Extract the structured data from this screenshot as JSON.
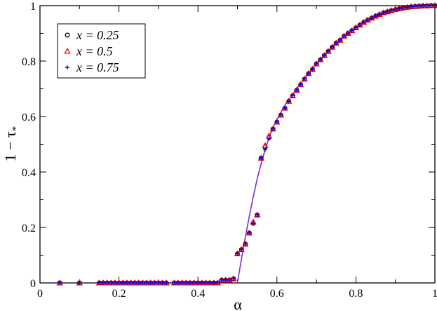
{
  "chart_data": {
    "type": "scatter",
    "xlabel": "α",
    "ylabel": "1 − τ",
    "ylabel_subscript": "*",
    "xlim": [
      0,
      1
    ],
    "ylim": [
      0,
      1
    ],
    "xticks": [
      "0",
      "0.2",
      "0.4",
      "0.6",
      "0.8",
      "1"
    ],
    "xtick_values": [
      0,
      0.2,
      0.4,
      0.6,
      0.8,
      1
    ],
    "yticks": [
      "0",
      "0.2",
      "0.4",
      "0.6",
      "0.8",
      "1"
    ],
    "ytick_values": [
      0,
      0.2,
      0.4,
      0.6,
      0.8,
      1
    ],
    "grid": false,
    "legend_position": "top-left",
    "x": [
      0.05,
      0.1,
      0.15,
      0.16,
      0.17,
      0.18,
      0.19,
      0.2,
      0.21,
      0.22,
      0.23,
      0.24,
      0.25,
      0.26,
      0.27,
      0.28,
      0.29,
      0.3,
      0.31,
      0.32,
      0.34,
      0.35,
      0.36,
      0.37,
      0.38,
      0.39,
      0.4,
      0.41,
      0.42,
      0.43,
      0.44,
      0.45,
      0.46,
      0.47,
      0.48,
      0.49,
      0.5,
      0.51,
      0.52,
      0.53,
      0.54,
      0.55,
      0.56,
      0.57,
      0.58,
      0.59,
      0.6,
      0.61,
      0.62,
      0.63,
      0.64,
      0.65,
      0.66,
      0.67,
      0.68,
      0.69,
      0.7,
      0.71,
      0.72,
      0.73,
      0.74,
      0.75,
      0.76,
      0.77,
      0.78,
      0.79,
      0.8,
      0.81,
      0.82,
      0.83,
      0.84,
      0.85,
      0.86,
      0.87,
      0.88,
      0.89,
      0.9,
      0.91,
      0.92,
      0.93,
      0.94,
      0.95,
      0.96,
      0.97,
      0.98,
      0.99,
      1.0
    ],
    "series": [
      {
        "name": "x = 0.25",
        "marker": "circle",
        "color": "#000000",
        "values": [
          0.0,
          0.0,
          0.0,
          0.0,
          0.0,
          0.0,
          0.0,
          0.0,
          0.0,
          0.0,
          0.0,
          0.0,
          0.0,
          0.0,
          0.0,
          0.0,
          0.0,
          0.0,
          0.0,
          0.0,
          0.0,
          0.0,
          0.0,
          0.0,
          0.0,
          0.0,
          0.0,
          0.0,
          0.0,
          0.0,
          0.0,
          0.0,
          0.01,
          0.01,
          0.01,
          0.015,
          0.105,
          0.12,
          0.14,
          0.18,
          0.215,
          0.245,
          0.45,
          0.49,
          0.525,
          0.555,
          0.58,
          0.605,
          0.63,
          0.655,
          0.675,
          0.695,
          0.715,
          0.735,
          0.755,
          0.77,
          0.79,
          0.805,
          0.82,
          0.835,
          0.85,
          0.865,
          0.875,
          0.89,
          0.9,
          0.91,
          0.92,
          0.93,
          0.94,
          0.948,
          0.955,
          0.962,
          0.968,
          0.974,
          0.978,
          0.982,
          0.986,
          0.989,
          0.992,
          0.994,
          0.996,
          0.997,
          0.998,
          0.999,
          0.999,
          1.0,
          1.0
        ]
      },
      {
        "name": "x = 0.5",
        "marker": "triangle",
        "color": "#ff0000",
        "values": [
          0.0,
          0.0,
          0.0,
          0.0,
          0.0,
          0.0,
          0.0,
          0.0,
          0.0,
          0.0,
          0.0,
          0.0,
          0.0,
          0.0,
          0.0,
          0.0,
          0.0,
          0.0,
          0.0,
          0.0,
          0.0,
          0.0,
          0.0,
          0.0,
          0.0,
          0.0,
          0.0,
          0.0,
          0.0,
          0.0,
          0.0,
          0.0,
          0.01,
          0.01,
          0.01,
          0.015,
          0.105,
          0.12,
          0.14,
          0.18,
          0.22,
          0.245,
          0.45,
          0.495,
          0.53,
          0.555,
          0.58,
          0.605,
          0.63,
          0.655,
          0.675,
          0.695,
          0.715,
          0.735,
          0.755,
          0.77,
          0.79,
          0.805,
          0.82,
          0.835,
          0.85,
          0.865,
          0.875,
          0.89,
          0.9,
          0.91,
          0.92,
          0.93,
          0.94,
          0.948,
          0.955,
          0.962,
          0.968,
          0.974,
          0.978,
          0.982,
          0.986,
          0.989,
          0.992,
          0.994,
          0.996,
          0.997,
          0.998,
          0.999,
          0.999,
          1.0,
          1.0
        ]
      },
      {
        "name": "x = 0.75",
        "marker": "plus",
        "color": "#0000ff",
        "values": [
          0.0,
          0.0,
          0.0,
          0.0,
          0.0,
          0.0,
          0.0,
          0.0,
          0.0,
          0.0,
          0.0,
          0.0,
          0.0,
          0.0,
          0.0,
          0.0,
          0.0,
          0.0,
          0.0,
          0.0,
          0.0,
          0.0,
          0.0,
          0.0,
          0.0,
          0.0,
          0.0,
          0.0,
          0.0,
          0.0,
          0.0,
          0.0,
          0.01,
          0.01,
          0.01,
          0.015,
          0.105,
          0.12,
          0.14,
          0.18,
          0.215,
          0.245,
          0.45,
          0.48,
          0.52,
          0.555,
          0.58,
          0.605,
          0.63,
          0.655,
          0.675,
          0.695,
          0.715,
          0.735,
          0.755,
          0.77,
          0.79,
          0.805,
          0.82,
          0.835,
          0.85,
          0.865,
          0.875,
          0.89,
          0.9,
          0.91,
          0.92,
          0.93,
          0.94,
          0.948,
          0.955,
          0.962,
          0.968,
          0.974,
          0.978,
          0.982,
          0.986,
          0.989,
          0.992,
          0.994,
          0.996,
          0.997,
          0.998,
          0.999,
          0.999,
          1.0,
          1.0
        ]
      }
    ],
    "curve": {
      "color": "#7b2fd0",
      "x": [
        0.5,
        0.51,
        0.52,
        0.53,
        0.54,
        0.55,
        0.56,
        0.57,
        0.58,
        0.59,
        0.6,
        0.62,
        0.64,
        0.66,
        0.68,
        0.7,
        0.72,
        0.74,
        0.76,
        0.78,
        0.8,
        0.82,
        0.84,
        0.86,
        0.88,
        0.9,
        0.92,
        0.94,
        0.96,
        0.98,
        1.0
      ],
      "y": [
        0.0,
        0.085,
        0.165,
        0.24,
        0.31,
        0.375,
        0.43,
        0.48,
        0.525,
        0.56,
        0.59,
        0.64,
        0.68,
        0.72,
        0.755,
        0.79,
        0.82,
        0.85,
        0.875,
        0.9,
        0.92,
        0.938,
        0.953,
        0.966,
        0.977,
        0.985,
        0.991,
        0.995,
        0.998,
        0.999,
        1.0
      ]
    }
  }
}
